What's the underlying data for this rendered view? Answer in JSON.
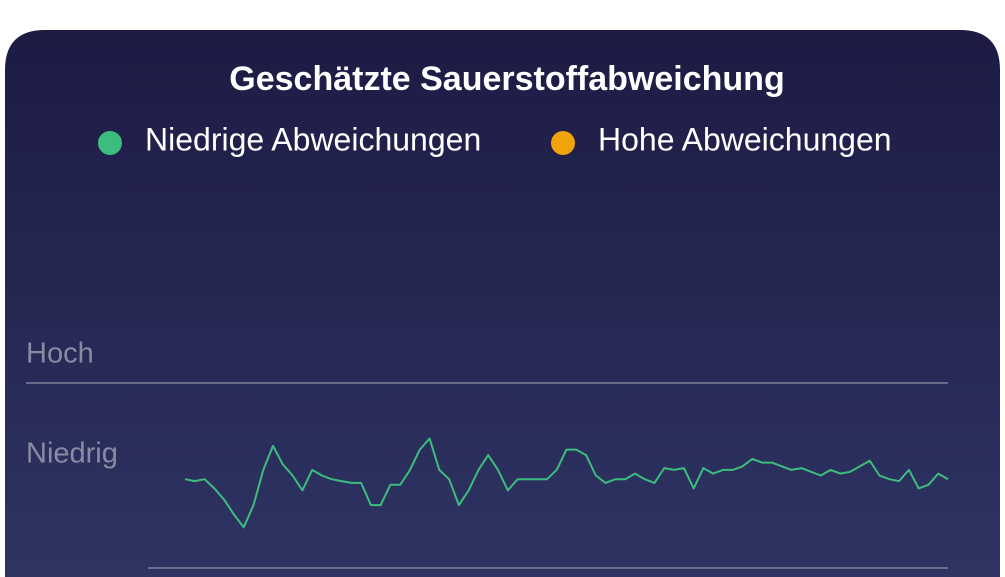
{
  "chart_data": {
    "type": "line",
    "title": "Geschätzte Sauerstoffabweichung",
    "series": [
      {
        "name": "Niedrige Abweichungen",
        "color": "#3dbd7d",
        "values": [
          48,
          47,
          48,
          43,
          37,
          29,
          22,
          34,
          53,
          66,
          56,
          50,
          42,
          53,
          50,
          48,
          47,
          46,
          46,
          34,
          34,
          45,
          45,
          53,
          64,
          70,
          53,
          48,
          34,
          42,
          53,
          61,
          53,
          42,
          48,
          48,
          48,
          48,
          53,
          64,
          64,
          61,
          50,
          46,
          48,
          48,
          51,
          48,
          46,
          54,
          53,
          54,
          43,
          54,
          51,
          53,
          53,
          55,
          59,
          57,
          57,
          55,
          53,
          54,
          52,
          50,
          53,
          51,
          52,
          55,
          58,
          50,
          48,
          47,
          53,
          43,
          45,
          51,
          48
        ]
      },
      {
        "name": "Hohe Abweichungen",
        "color": "#f0a30a",
        "values": []
      }
    ],
    "ylim": [
      0,
      100
    ],
    "yticks": [
      {
        "value": 100,
        "label": "Hoch"
      },
      {
        "value": 46,
        "label": "Niedrig"
      }
    ]
  }
}
